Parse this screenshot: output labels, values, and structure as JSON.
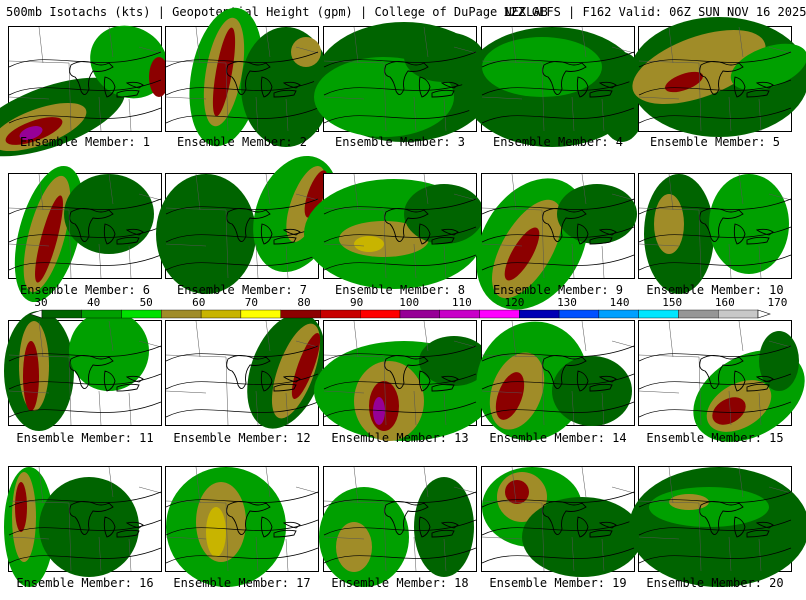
{
  "header": {
    "left": "500mb Isotachs (kts) | Geopotential Height (gpm) | College of DuPage NEXLAB",
    "right": "12Z GEFS | F162 Valid: 06Z SUN NOV 16 2025"
  },
  "colorbar": {
    "ticks": [
      "30",
      "40",
      "50",
      "60",
      "70",
      "80",
      "90",
      "100",
      "110",
      "120",
      "130",
      "140",
      "150",
      "160",
      "170"
    ],
    "colors": [
      "#006400",
      "#00a000",
      "#00e000",
      "#a08c28",
      "#c8b400",
      "#ffff00",
      "#8c0000",
      "#c80000",
      "#ff0000",
      "#960096",
      "#c800c8",
      "#ff00ff",
      "#0000b4",
      "#0050ff",
      "#00a0ff",
      "#00e6ff",
      "#969696",
      "#c8c8c8"
    ]
  },
  "members": [
    {
      "label": "Ensemble Member: 1"
    },
    {
      "label": "Ensemble Member: 2"
    },
    {
      "label": "Ensemble Member: 3"
    },
    {
      "label": "Ensemble Member: 4"
    },
    {
      "label": "Ensemble Member: 5"
    },
    {
      "label": "Ensemble Member: 6"
    },
    {
      "label": "Ensemble Member: 7"
    },
    {
      "label": "Ensemble Member: 8"
    },
    {
      "label": "Ensemble Member: 9"
    },
    {
      "label": "Ensemble Member: 10"
    },
    {
      "label": "Ensemble Member: 11"
    },
    {
      "label": "Ensemble Member: 12"
    },
    {
      "label": "Ensemble Member: 13"
    },
    {
      "label": "Ensemble Member: 14"
    },
    {
      "label": "Ensemble Member: 15"
    },
    {
      "label": "Ensemble Member: 16"
    },
    {
      "label": "Ensemble Member: 17"
    },
    {
      "label": "Ensemble Member: 18"
    },
    {
      "label": "Ensemble Member: 19"
    },
    {
      "label": "Ensemble Member: 20"
    }
  ]
}
